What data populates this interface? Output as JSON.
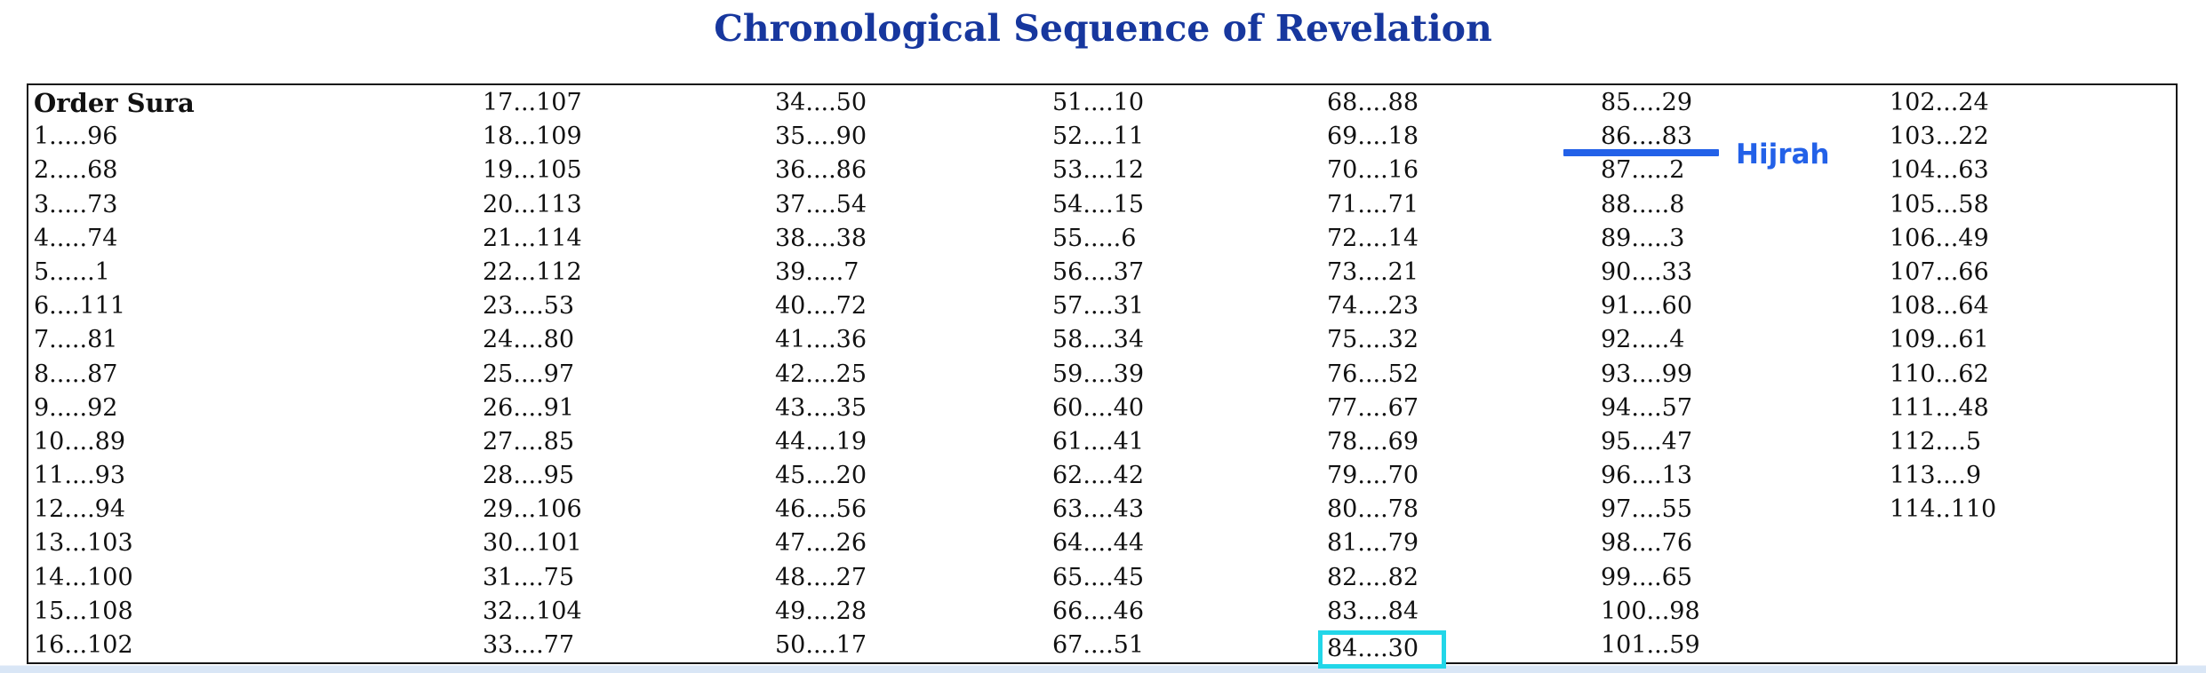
{
  "page": {
    "title": "Chronological Sequence of Revelation",
    "title_color": "#17379e",
    "text_color": "#111111",
    "bottom_strip_color": "#d9e6f6"
  },
  "table": {
    "columns": [
      {
        "rows": [
          "Order Sura",
          "1.....96",
          "2.....68",
          "3.....73",
          "4.....74",
          "5......1",
          "6....111",
          "7.....81",
          "8.....87",
          "9.....92",
          "10....89",
          "11....93",
          "12....94",
          "13...103",
          "14...100",
          "15...108",
          "16...102"
        ]
      },
      {
        "rows": [
          "17...107",
          "18...109",
          "19...105",
          "20...113",
          "21...114",
          "22...112",
          "23....53",
          "24....80",
          "25....97",
          "26....91",
          "27....85",
          "28....95",
          "29...106",
          "30...101",
          "31....75",
          "32...104",
          "33....77"
        ]
      },
      {
        "rows": [
          "34....50",
          "35....90",
          "36....86",
          "37....54",
          "38....38",
          "39.....7",
          "40....72",
          "41....36",
          "42....25",
          "43....35",
          "44....19",
          "45....20",
          "46....56",
          "47....26",
          "48....27",
          "49....28",
          "50....17"
        ]
      },
      {
        "rows": [
          "51....10",
          "52....11",
          "53....12",
          "54....15",
          "55.....6",
          "56....37",
          "57....31",
          "58....34",
          "59....39",
          "60....40",
          "61....41",
          "62....42",
          "63....43",
          "64....44",
          "65....45",
          "66....46",
          "67....51"
        ]
      },
      {
        "rows": [
          "68....88",
          "69....18",
          "70....16",
          "71....71",
          "72....14",
          "73....21",
          "74....23",
          "75....32",
          "76....52",
          "77....67",
          "78....69",
          "79....70",
          "80....78",
          "81....79",
          "82....82",
          "83....84",
          "84....30"
        ]
      },
      {
        "rows": [
          "85....29",
          "86....83",
          "87.....2",
          "88.....8",
          "89.....3",
          "90....33",
          "91....60",
          "92.....4",
          "93....99",
          "94....57",
          "95....47",
          "96....13",
          "97....55",
          "98....76",
          "99....65",
          "100...98",
          "101...59"
        ]
      },
      {
        "rows": [
          "102...24",
          "103...22",
          "104...63",
          "105...58",
          "106...49",
          "107...66",
          "108...64",
          "109...61",
          "110...62",
          "111...48",
          "112....5",
          "113....9",
          "114..110"
        ]
      }
    ],
    "annotations": {
      "header_cell": {
        "column": 0,
        "row": 0,
        "value": "Order Sura"
      },
      "highlight_box": {
        "column": 4,
        "row": 16,
        "value": "84....30",
        "color": "#22d6e8"
      },
      "hijrah": {
        "column": 5,
        "row": 1,
        "value": "86....83",
        "label": "Hijrah",
        "line_color": "#2361e8",
        "label_color": "#2361e8"
      }
    }
  }
}
